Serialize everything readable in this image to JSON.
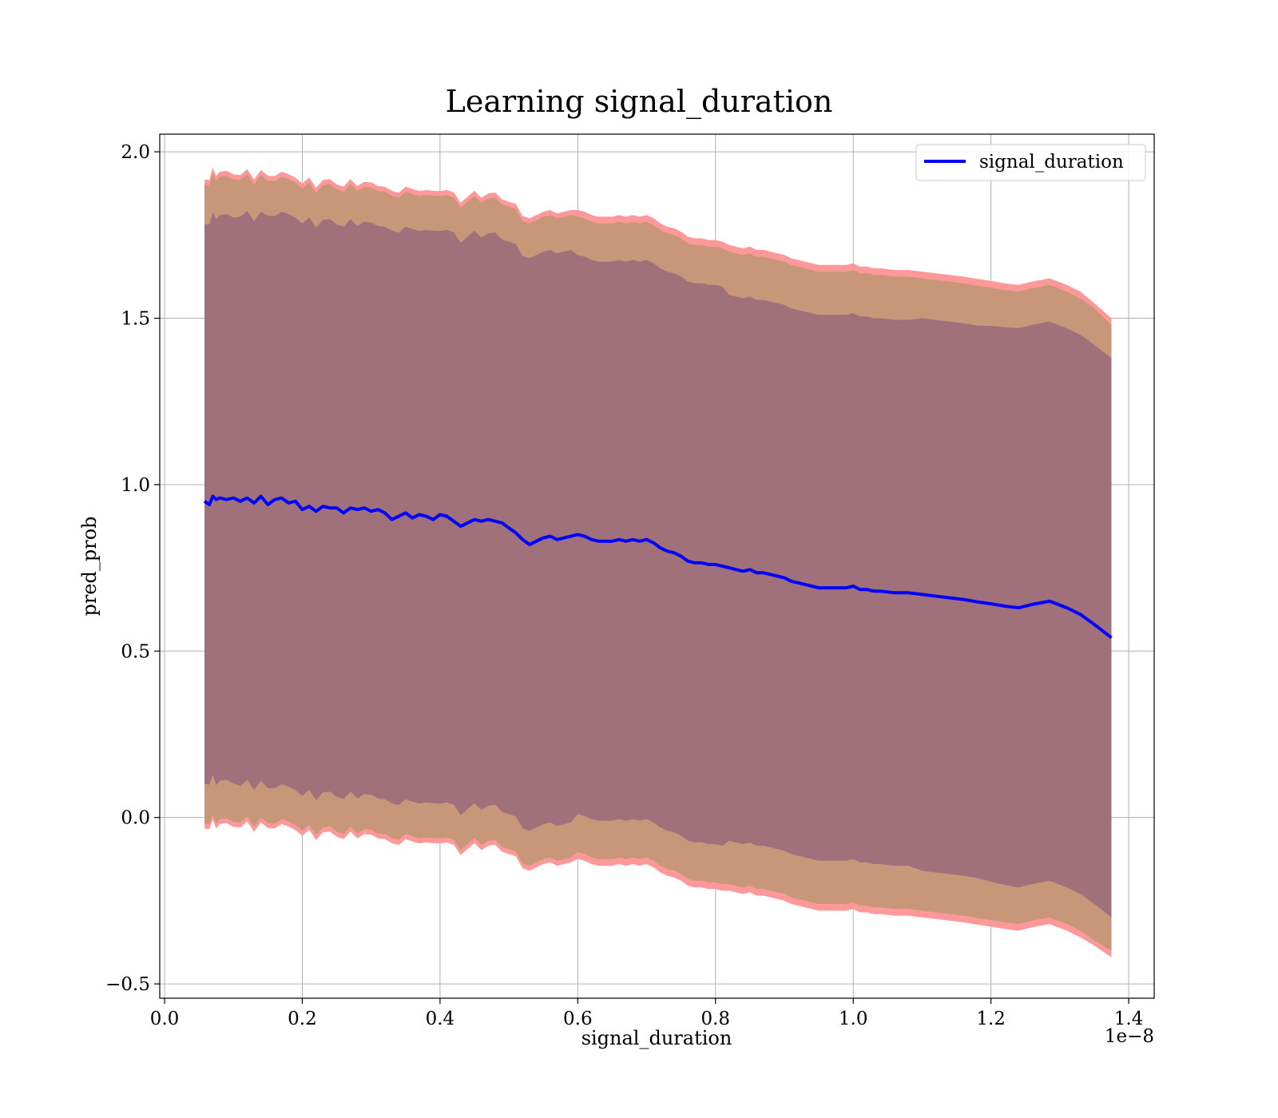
{
  "chart_data": {
    "type": "line",
    "title": "Learning signal_duration",
    "xlabel": "signal_duration",
    "ylabel": "pred_prob",
    "x_offset_label": "1e−8",
    "xlim": [
      -0.007,
      1.437
    ],
    "ylim": [
      -0.543,
      2.053
    ],
    "x_ticks": [
      0.0,
      0.2,
      0.4,
      0.6,
      0.8,
      1.0,
      1.2,
      1.4
    ],
    "x_tick_labels": [
      "0.0",
      "0.2",
      "0.4",
      "0.6",
      "0.8",
      "1.0",
      "1.2",
      "1.4"
    ],
    "y_ticks": [
      -0.5,
      0.0,
      0.5,
      1.0,
      1.5,
      2.0
    ],
    "y_tick_labels": [
      "−0.5",
      "0.0",
      "0.5",
      "1.0",
      "1.5",
      "2.0"
    ],
    "grid": true,
    "legend": {
      "position": "top-right",
      "entries": [
        "signal_duration"
      ]
    },
    "colors": {
      "line": "#0000ff",
      "outer_band": "#ff9999",
      "middle_band": "#c8977a",
      "inner_band": "#a0717a"
    },
    "series": [
      {
        "name": "signal_duration",
        "x": [
          0.058,
          0.065,
          0.07,
          0.075,
          0.08,
          0.09,
          0.1,
          0.11,
          0.12,
          0.13,
          0.14,
          0.15,
          0.16,
          0.17,
          0.18,
          0.19,
          0.2,
          0.21,
          0.22,
          0.23,
          0.24,
          0.25,
          0.26,
          0.27,
          0.28,
          0.29,
          0.3,
          0.31,
          0.32,
          0.33,
          0.34,
          0.35,
          0.36,
          0.37,
          0.38,
          0.39,
          0.4,
          0.41,
          0.42,
          0.43,
          0.44,
          0.45,
          0.46,
          0.47,
          0.48,
          0.49,
          0.5,
          0.51,
          0.52,
          0.53,
          0.54,
          0.55,
          0.56,
          0.57,
          0.58,
          0.59,
          0.6,
          0.61,
          0.62,
          0.63,
          0.64,
          0.65,
          0.66,
          0.67,
          0.68,
          0.69,
          0.7,
          0.71,
          0.72,
          0.73,
          0.74,
          0.75,
          0.76,
          0.77,
          0.78,
          0.79,
          0.8,
          0.81,
          0.82,
          0.83,
          0.84,
          0.85,
          0.86,
          0.87,
          0.88,
          0.89,
          0.9,
          0.91,
          0.92,
          0.93,
          0.94,
          0.95,
          0.96,
          0.97,
          0.98,
          0.99,
          1.0,
          1.01,
          1.02,
          1.03,
          1.04,
          1.06,
          1.08,
          1.1,
          1.12,
          1.14,
          1.16,
          1.18,
          1.2,
          1.22,
          1.24,
          1.26,
          1.285,
          1.31,
          1.33,
          1.35,
          1.375
        ],
        "y": [
          0.95,
          0.94,
          0.965,
          0.955,
          0.96,
          0.955,
          0.96,
          0.95,
          0.96,
          0.945,
          0.965,
          0.94,
          0.955,
          0.96,
          0.945,
          0.95,
          0.925,
          0.935,
          0.92,
          0.935,
          0.93,
          0.93,
          0.915,
          0.93,
          0.925,
          0.93,
          0.92,
          0.925,
          0.915,
          0.895,
          0.905,
          0.915,
          0.9,
          0.91,
          0.905,
          0.895,
          0.91,
          0.905,
          0.89,
          0.875,
          0.885,
          0.895,
          0.89,
          0.895,
          0.89,
          0.885,
          0.87,
          0.855,
          0.835,
          0.82,
          0.83,
          0.84,
          0.845,
          0.835,
          0.84,
          0.845,
          0.85,
          0.845,
          0.835,
          0.83,
          0.83,
          0.83,
          0.835,
          0.83,
          0.835,
          0.83,
          0.835,
          0.825,
          0.81,
          0.8,
          0.795,
          0.785,
          0.77,
          0.765,
          0.765,
          0.76,
          0.76,
          0.755,
          0.75,
          0.745,
          0.74,
          0.745,
          0.735,
          0.735,
          0.73,
          0.725,
          0.72,
          0.71,
          0.705,
          0.7,
          0.695,
          0.69,
          0.69,
          0.69,
          0.69,
          0.69,
          0.695,
          0.685,
          0.685,
          0.68,
          0.68,
          0.675,
          0.675,
          0.67,
          0.665,
          0.66,
          0.655,
          0.648,
          0.642,
          0.635,
          0.63,
          0.64,
          0.65,
          0.63,
          0.61,
          0.58,
          0.54
        ]
      }
    ],
    "bands": {
      "inner_halfwidth": [
        0.84,
        0.842,
        0.845,
        0.85,
        0.85,
        0.85,
        0.85,
        0.855,
        0.855,
        0.855,
        0.855,
        0.86,
        0.86,
        0.86,
        0.86,
        0.86,
        0.86,
        0.86,
        0.86,
        0.86,
        0.86,
        0.86,
        0.86,
        0.86,
        0.86,
        0.86,
        0.86,
        0.86,
        0.86,
        0.86,
        0.86,
        0.86,
        0.86,
        0.86,
        0.86,
        0.86,
        0.86,
        0.86,
        0.86,
        0.86,
        0.86,
        0.86,
        0.86,
        0.86,
        0.86,
        0.86,
        0.86,
        0.86,
        0.86,
        0.86,
        0.86,
        0.86,
        0.86,
        0.86,
        0.86,
        0.86,
        0.84,
        0.84,
        0.84,
        0.84,
        0.84,
        0.84,
        0.84,
        0.84,
        0.84,
        0.84,
        0.84,
        0.84,
        0.84,
        0.84,
        0.84,
        0.84,
        0.84,
        0.84,
        0.84,
        0.84,
        0.84,
        0.84,
        0.82,
        0.82,
        0.82,
        0.82,
        0.82,
        0.82,
        0.82,
        0.82,
        0.82,
        0.82,
        0.82,
        0.82,
        0.82,
        0.82,
        0.82,
        0.82,
        0.82,
        0.82,
        0.82,
        0.82,
        0.82,
        0.82,
        0.82,
        0.82,
        0.82,
        0.83,
        0.83,
        0.83,
        0.83,
        0.83,
        0.835,
        0.838,
        0.84,
        0.84,
        0.84,
        0.84,
        0.84,
        0.84,
        0.84
      ],
      "middle_halfwidth": [
        0.96,
        0.96,
        0.965,
        0.965,
        0.965,
        0.965,
        0.965,
        0.965,
        0.965,
        0.965,
        0.965,
        0.965,
        0.965,
        0.965,
        0.965,
        0.965,
        0.965,
        0.965,
        0.965,
        0.965,
        0.965,
        0.965,
        0.965,
        0.965,
        0.965,
        0.965,
        0.965,
        0.965,
        0.965,
        0.965,
        0.965,
        0.965,
        0.965,
        0.965,
        0.965,
        0.965,
        0.965,
        0.965,
        0.965,
        0.965,
        0.965,
        0.965,
        0.965,
        0.965,
        0.965,
        0.965,
        0.965,
        0.965,
        0.965,
        0.965,
        0.965,
        0.965,
        0.965,
        0.965,
        0.965,
        0.965,
        0.955,
        0.955,
        0.955,
        0.955,
        0.955,
        0.955,
        0.955,
        0.955,
        0.955,
        0.955,
        0.955,
        0.955,
        0.955,
        0.955,
        0.955,
        0.955,
        0.955,
        0.955,
        0.955,
        0.955,
        0.955,
        0.955,
        0.95,
        0.95,
        0.95,
        0.95,
        0.95,
        0.95,
        0.95,
        0.95,
        0.95,
        0.95,
        0.95,
        0.95,
        0.95,
        0.95,
        0.95,
        0.95,
        0.95,
        0.95,
        0.95,
        0.95,
        0.95,
        0.95,
        0.95,
        0.95,
        0.95,
        0.95,
        0.95,
        0.95,
        0.95,
        0.95,
        0.95,
        0.95,
        0.95,
        0.95,
        0.95,
        0.95,
        0.95,
        0.95,
        0.94
      ],
      "outer_halfwidth": [
        0.975,
        0.975,
        0.98,
        0.98,
        0.98,
        0.98,
        0.98,
        0.98,
        0.98,
        0.98,
        0.98,
        0.98,
        0.98,
        0.98,
        0.98,
        0.98,
        0.98,
        0.98,
        0.98,
        0.98,
        0.98,
        0.98,
        0.98,
        0.98,
        0.98,
        0.98,
        0.98,
        0.98,
        0.98,
        0.98,
        0.98,
        0.98,
        0.98,
        0.98,
        0.98,
        0.98,
        0.98,
        0.98,
        0.98,
        0.98,
        0.98,
        0.98,
        0.98,
        0.98,
        0.98,
        0.98,
        0.98,
        0.98,
        0.98,
        0.98,
        0.98,
        0.98,
        0.98,
        0.98,
        0.98,
        0.98,
        0.975,
        0.975,
        0.975,
        0.975,
        0.975,
        0.975,
        0.975,
        0.975,
        0.975,
        0.975,
        0.975,
        0.975,
        0.975,
        0.975,
        0.975,
        0.975,
        0.975,
        0.975,
        0.975,
        0.975,
        0.975,
        0.975,
        0.97,
        0.97,
        0.97,
        0.97,
        0.97,
        0.97,
        0.97,
        0.97,
        0.97,
        0.97,
        0.97,
        0.97,
        0.97,
        0.97,
        0.97,
        0.97,
        0.97,
        0.97,
        0.97,
        0.97,
        0.97,
        0.97,
        0.97,
        0.97,
        0.97,
        0.97,
        0.97,
        0.97,
        0.97,
        0.97,
        0.97,
        0.97,
        0.97,
        0.97,
        0.97,
        0.97,
        0.97,
        0.965,
        0.96
      ]
    }
  }
}
